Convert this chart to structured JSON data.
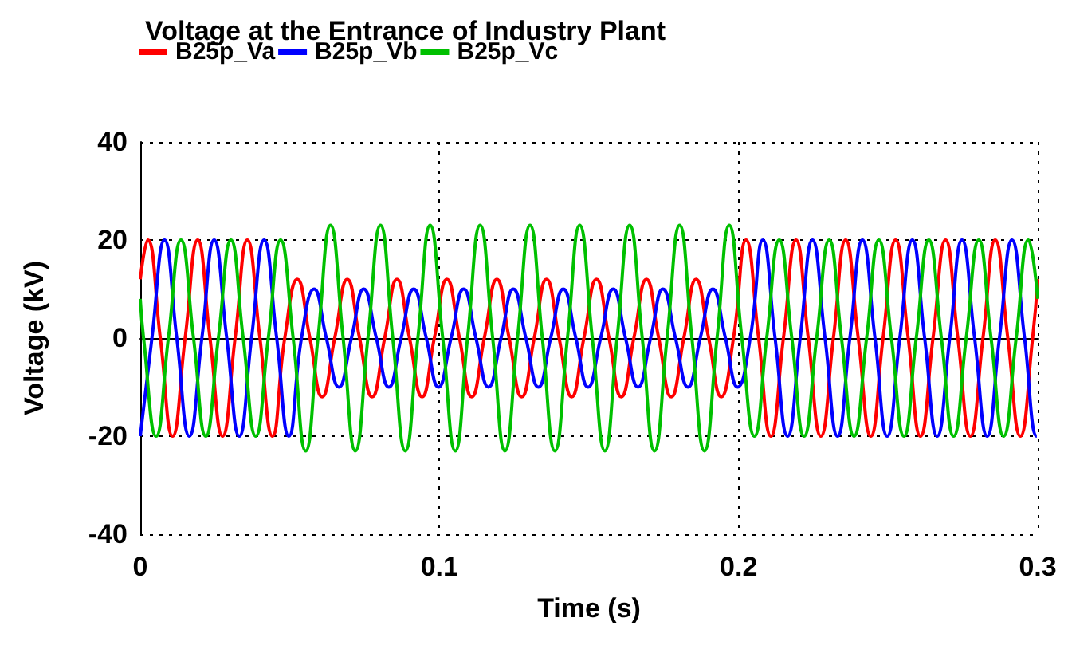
{
  "chart_data": {
    "type": "line",
    "title": "Voltage at the Entrance of Industry Plant",
    "xlabel": "Time (s)",
    "ylabel": "Voltage (kV)",
    "xlim": [
      0,
      0.3
    ],
    "ylim": [
      -40,
      40
    ],
    "xticks": [
      0,
      0.1,
      0.2,
      0.3
    ],
    "yticks": [
      -40,
      -20,
      0,
      20,
      40
    ],
    "grid": true,
    "legend": "top",
    "marker": "none",
    "line_style": "solid",
    "series": [
      {
        "name": "B25p_Va",
        "color": "#ff0000",
        "x": [
          0,
          0.0025,
          0.0067,
          0.0108,
          0.015,
          0.0192,
          0.0233,
          0.0275,
          0.0317,
          0.0358,
          0.04,
          0.0442,
          0.0483,
          0.0525,
          0.0567,
          0.0608,
          0.065,
          0.0692,
          0.0733,
          0.0775,
          0.0817,
          0.0858,
          0.09,
          0.0942,
          0.0983,
          0.1025,
          0.1067,
          0.1108,
          0.115,
          0.1192,
          0.1233,
          0.1275,
          0.1317,
          0.1358,
          0.14,
          0.1442,
          0.1483,
          0.1525,
          0.1567,
          0.1608,
          0.165,
          0.1692,
          0.1733,
          0.1775,
          0.1817,
          0.1858,
          0.19,
          0.1942,
          0.1983,
          0.2025,
          0.2067,
          0.2108,
          0.215,
          0.2192,
          0.2233,
          0.2275,
          0.2317,
          0.2358,
          0.24,
          0.2442,
          0.2483,
          0.2525,
          0.2567,
          0.2608,
          0.265,
          0.2692,
          0.2733,
          0.2775,
          0.2817,
          0.2858,
          0.29,
          0.2942,
          0.2983,
          0.3
        ],
        "values": [
          12,
          20,
          0,
          -20,
          0,
          20,
          0,
          -20,
          0,
          20,
          0,
          -20,
          0,
          12,
          0,
          -12,
          0,
          12,
          0,
          -12,
          0,
          12,
          0,
          -12,
          0,
          12,
          0,
          -12,
          0,
          12,
          0,
          -12,
          0,
          12,
          0,
          -12,
          0,
          12,
          0,
          -12,
          0,
          12,
          0,
          -12,
          0,
          12,
          0,
          -12,
          0,
          20,
          0,
          -20,
          0,
          20,
          0,
          -20,
          0,
          20,
          0,
          -20,
          0,
          20,
          0,
          -20,
          0,
          20,
          0,
          -20,
          0,
          20,
          0,
          -20,
          0,
          12
        ]
      },
      {
        "name": "B25p_Vb",
        "color": "#0000ff",
        "x": [
          0,
          0.0039,
          0.0081,
          0.0122,
          0.0164,
          0.0206,
          0.0247,
          0.0289,
          0.0331,
          0.0372,
          0.0414,
          0.0456,
          0.0497,
          0.0539,
          0.0581,
          0.0622,
          0.0664,
          0.0706,
          0.0747,
          0.0789,
          0.0831,
          0.0872,
          0.0914,
          0.0956,
          0.0997,
          0.1039,
          0.1081,
          0.1122,
          0.1164,
          0.1206,
          0.1247,
          0.1289,
          0.1331,
          0.1372,
          0.1414,
          0.1456,
          0.1497,
          0.1539,
          0.1581,
          0.1622,
          0.1664,
          0.1706,
          0.1747,
          0.1789,
          0.1831,
          0.1872,
          0.1914,
          0.1956,
          0.1997,
          0.2039,
          0.2081,
          0.2122,
          0.2164,
          0.2206,
          0.2247,
          0.2289,
          0.2331,
          0.2372,
          0.2414,
          0.2456,
          0.2497,
          0.2539,
          0.2581,
          0.2622,
          0.2664,
          0.2706,
          0.2747,
          0.2789,
          0.2831,
          0.2872,
          0.2914,
          0.2956,
          0.2997,
          0.3
        ],
        "values": [
          -20,
          0,
          20,
          0,
          -20,
          0,
          20,
          0,
          -20,
          0,
          20,
          0,
          -20,
          0,
          10,
          0,
          -10,
          0,
          10,
          0,
          -10,
          0,
          10,
          0,
          -10,
          0,
          10,
          0,
          -10,
          0,
          10,
          0,
          -10,
          0,
          10,
          0,
          -10,
          0,
          10,
          0,
          -10,
          0,
          10,
          0,
          -10,
          0,
          10,
          0,
          -10,
          0,
          20,
          0,
          -20,
          0,
          20,
          0,
          -20,
          0,
          20,
          0,
          -20,
          0,
          20,
          0,
          -20,
          0,
          20,
          0,
          -20,
          0,
          20,
          0,
          -20,
          -20
        ]
      },
      {
        "name": "B25p_Vc",
        "color": "#00c000",
        "x": [
          0,
          0.0011,
          0.0053,
          0.0094,
          0.0136,
          0.0178,
          0.0219,
          0.0261,
          0.0303,
          0.0344,
          0.0386,
          0.0428,
          0.0469,
          0.0511,
          0.0553,
          0.0594,
          0.0636,
          0.0678,
          0.0719,
          0.0761,
          0.0803,
          0.0844,
          0.0886,
          0.0928,
          0.0969,
          0.1011,
          0.1053,
          0.1094,
          0.1136,
          0.1178,
          0.1219,
          0.1261,
          0.1303,
          0.1344,
          0.1386,
          0.1428,
          0.1469,
          0.1511,
          0.1553,
          0.1594,
          0.1636,
          0.1678,
          0.1719,
          0.1761,
          0.1803,
          0.1844,
          0.1886,
          0.1928,
          0.1969,
          0.2011,
          0.2053,
          0.2094,
          0.2136,
          0.2178,
          0.2219,
          0.2261,
          0.2303,
          0.2344,
          0.2386,
          0.2428,
          0.2469,
          0.2511,
          0.2553,
          0.2594,
          0.2636,
          0.2678,
          0.2719,
          0.2761,
          0.2803,
          0.2844,
          0.2886,
          0.2928,
          0.2969,
          0.3
        ],
        "values": [
          8,
          0,
          -20,
          0,
          20,
          0,
          -20,
          0,
          20,
          0,
          -20,
          0,
          20,
          0,
          -23,
          0,
          23,
          0,
          -23,
          0,
          23,
          0,
          -23,
          0,
          23,
          0,
          -23,
          0,
          23,
          0,
          -23,
          0,
          23,
          0,
          -23,
          0,
          23,
          0,
          -23,
          0,
          23,
          0,
          -23,
          0,
          23,
          0,
          -23,
          0,
          23,
          0,
          -20,
          0,
          20,
          0,
          -20,
          0,
          20,
          0,
          -20,
          0,
          20,
          0,
          -20,
          0,
          20,
          0,
          -20,
          0,
          20,
          0,
          -20,
          0,
          20,
          8
        ]
      }
    ]
  }
}
